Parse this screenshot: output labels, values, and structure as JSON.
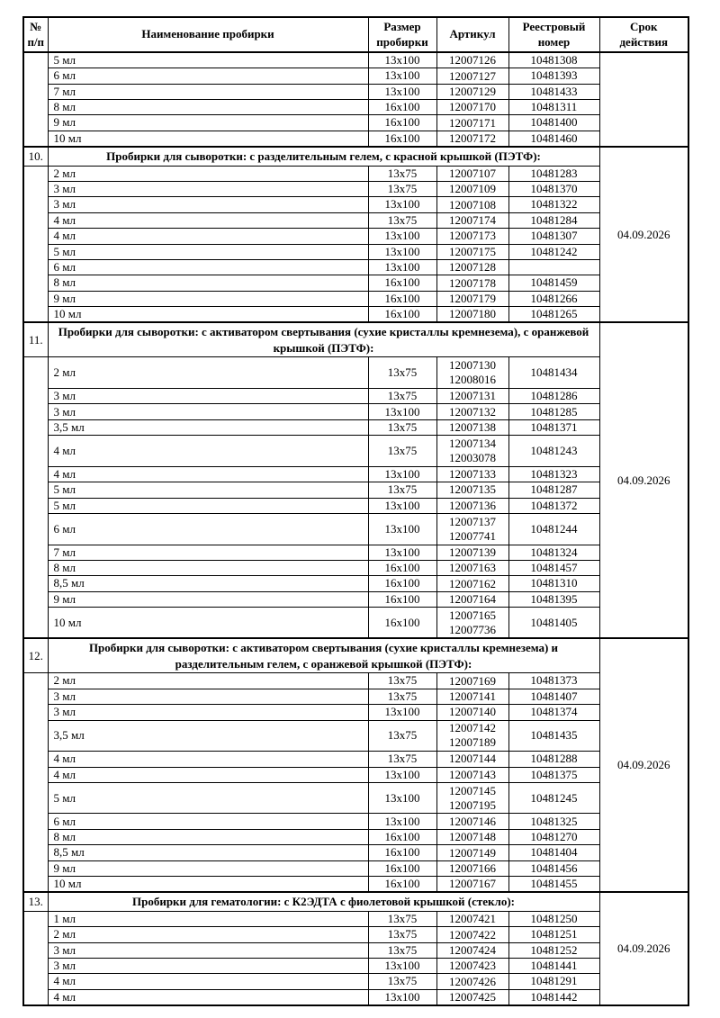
{
  "table": {
    "headers": [
      "№ п/п",
      "Наименование пробирки",
      "Размер пробирки",
      "Артикул",
      "Реестровый номер",
      "Срок действия"
    ],
    "sections": [
      {
        "number": "",
        "title": null,
        "validity": "",
        "rows": [
          {
            "name": "5 мл",
            "size": "13x100",
            "articles": [
              "12007126"
            ],
            "registry": "10481308"
          },
          {
            "name": "6 мл",
            "size": "13x100",
            "articles": [
              "12007127"
            ],
            "registry": "10481393"
          },
          {
            "name": "7 мл",
            "size": "13x100",
            "articles": [
              "12007129"
            ],
            "registry": "10481433"
          },
          {
            "name": "8 мл",
            "size": "16x100",
            "articles": [
              "12007170"
            ],
            "registry": "10481311"
          },
          {
            "name": "9 мл",
            "size": "16x100",
            "articles": [
              "12007171"
            ],
            "registry": "10481400"
          },
          {
            "name": "10 мл",
            "size": "16x100",
            "articles": [
              "12007172"
            ],
            "registry": "10481460"
          }
        ]
      },
      {
        "number": "10.",
        "title": "Пробирки для сыворотки: с разделительным гелем, с красной крышкой (ПЭТФ):",
        "validity": "04.09.2026",
        "rows": [
          {
            "name": "2 мл",
            "size": "13x75",
            "articles": [
              "12007107"
            ],
            "registry": "10481283"
          },
          {
            "name": "3 мл",
            "size": "13x75",
            "articles": [
              "12007109"
            ],
            "registry": "10481370"
          },
          {
            "name": "3 мл",
            "size": "13x100",
            "articles": [
              "12007108"
            ],
            "registry": "10481322"
          },
          {
            "name": "4 мл",
            "size": "13x75",
            "articles": [
              "12007174"
            ],
            "registry": "10481284"
          },
          {
            "name": "4 мл",
            "size": "13x100",
            "articles": [
              "12007173"
            ],
            "registry": "10481307"
          },
          {
            "name": "5 мл",
            "size": "13x100",
            "articles": [
              "12007175"
            ],
            "registry": "10481242"
          },
          {
            "name": "6 мл",
            "size": "13x100",
            "articles": [
              "12007128"
            ],
            "registry": ""
          },
          {
            "name": "8 мл",
            "size": "16x100",
            "articles": [
              "12007178"
            ],
            "registry": "10481459"
          },
          {
            "name": "9 мл",
            "size": "16x100",
            "articles": [
              "12007179"
            ],
            "registry": "10481266"
          },
          {
            "name": "10 мл",
            "size": "16x100",
            "articles": [
              "12007180"
            ],
            "registry": "10481265"
          }
        ]
      },
      {
        "number": "11.",
        "title": "Пробирки для сыворотки: с активатором свертывания (сухие кристаллы кремнезема), с оранжевой крышкой (ПЭТФ):",
        "validity": "04.09.2026",
        "rows": [
          {
            "name": "2 мл",
            "size": "13x75",
            "articles": [
              "12007130",
              "12008016"
            ],
            "registry": "10481434"
          },
          {
            "name": "3 мл",
            "size": "13x75",
            "articles": [
              "12007131"
            ],
            "registry": "10481286"
          },
          {
            "name": "3 мл",
            "size": "13x100",
            "articles": [
              "12007132"
            ],
            "registry": "10481285"
          },
          {
            "name": "3,5 мл",
            "size": "13x75",
            "articles": [
              "12007138"
            ],
            "registry": "10481371"
          },
          {
            "name": "4 мл",
            "size": "13x75",
            "articles": [
              "12007134",
              "12003078"
            ],
            "registry": "10481243"
          },
          {
            "name": "4 мл",
            "size": "13x100",
            "articles": [
              "12007133"
            ],
            "registry": "10481323"
          },
          {
            "name": "5 мл",
            "size": "13x75",
            "articles": [
              "12007135"
            ],
            "registry": "10481287"
          },
          {
            "name": "5 мл",
            "size": "13x100",
            "articles": [
              "12007136"
            ],
            "registry": "10481372"
          },
          {
            "name": "6 мл",
            "size": "13x100",
            "articles": [
              "12007137",
              "12007741"
            ],
            "registry": "10481244"
          },
          {
            "name": "7 мл",
            "size": "13x100",
            "articles": [
              "12007139"
            ],
            "registry": "10481324"
          },
          {
            "name": "8 мл",
            "size": "16x100",
            "articles": [
              "12007163"
            ],
            "registry": "10481457"
          },
          {
            "name": "8,5 мл",
            "size": "16x100",
            "articles": [
              "12007162"
            ],
            "registry": "10481310"
          },
          {
            "name": "9 мл",
            "size": "16x100",
            "articles": [
              "12007164"
            ],
            "registry": "10481395"
          },
          {
            "name": "10 мл",
            "size": "16x100",
            "articles": [
              "12007165",
              "12007736"
            ],
            "registry": "10481405"
          }
        ]
      },
      {
        "number": "12.",
        "title": "Пробирки для сыворотки: с активатором свертывания (сухие кристаллы кремнезема) и разделительным гелем, с оранжевой крышкой (ПЭТФ):",
        "validity": "04.09.2026",
        "rows": [
          {
            "name": "2 мл",
            "size": "13x75",
            "articles": [
              "12007169"
            ],
            "registry": "10481373"
          },
          {
            "name": "3 мл",
            "size": "13x75",
            "articles": [
              "12007141"
            ],
            "registry": "10481407"
          },
          {
            "name": "3 мл",
            "size": "13x100",
            "articles": [
              "12007140"
            ],
            "registry": "10481374"
          },
          {
            "name": "3,5 мл",
            "size": "13x75",
            "articles": [
              "12007142",
              "12007189"
            ],
            "registry": "10481435"
          },
          {
            "name": "4 мл",
            "size": "13x75",
            "articles": [
              "12007144"
            ],
            "registry": "10481288"
          },
          {
            "name": "4 мл",
            "size": "13x100",
            "articles": [
              "12007143"
            ],
            "registry": "10481375"
          },
          {
            "name": "5 мл",
            "size": "13x100",
            "articles": [
              "12007145",
              "12007195"
            ],
            "registry": "10481245"
          },
          {
            "name": "6 мл",
            "size": "13x100",
            "articles": [
              "12007146"
            ],
            "registry": "10481325"
          },
          {
            "name": "8 мл",
            "size": "16x100",
            "articles": [
              "12007148"
            ],
            "registry": "10481270"
          },
          {
            "name": "8,5 мл",
            "size": "16x100",
            "articles": [
              "12007149"
            ],
            "registry": "10481404"
          },
          {
            "name": "9 мл",
            "size": "16x100",
            "articles": [
              "12007166"
            ],
            "registry": "10481456"
          },
          {
            "name": "10 мл",
            "size": "16x100",
            "articles": [
              "12007167"
            ],
            "registry": "10481455"
          }
        ]
      },
      {
        "number": "13.",
        "title": "Пробирки для гематологии: с К2ЭДТА с фиолетовой крышкой (стекло):",
        "validity": "04.09.2026",
        "rows": [
          {
            "name": "1 мл",
            "size": "13x75",
            "articles": [
              "12007421"
            ],
            "registry": "10481250"
          },
          {
            "name": "2 мл",
            "size": "13x75",
            "articles": [
              "12007422"
            ],
            "registry": "10481251"
          },
          {
            "name": "3 мл",
            "size": "13x75",
            "articles": [
              "12007424"
            ],
            "registry": "10481252"
          },
          {
            "name": "3 мл",
            "size": "13x100",
            "articles": [
              "12007423"
            ],
            "registry": "10481441"
          },
          {
            "name": "4 мл",
            "size": "13x75",
            "articles": [
              "12007426"
            ],
            "registry": "10481291"
          },
          {
            "name": "4 мл",
            "size": "13x100",
            "articles": [
              "12007425"
            ],
            "registry": "10481442"
          }
        ]
      }
    ]
  }
}
